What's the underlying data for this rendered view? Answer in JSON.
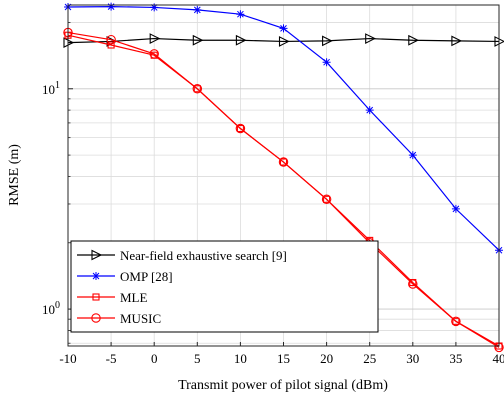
{
  "chart_data": {
    "type": "line",
    "title": "",
    "xlabel": "Transmit power of pilot signal (dBm)",
    "ylabel": "RMSE (m)",
    "xlim": [
      -10,
      40
    ],
    "ylim": [
      0.68,
      24
    ],
    "yscale": "log",
    "grid": true,
    "legend_position": "bottom-left",
    "x": [
      -10,
      -5,
      0,
      5,
      10,
      15,
      20,
      25,
      30,
      35,
      40
    ],
    "x_tick_labels": [
      "-10",
      "-5",
      "0",
      "5",
      "10",
      "15",
      "20",
      "25",
      "30",
      "35",
      "40"
    ],
    "y_ticks": [
      {
        "value": 1,
        "base": "10",
        "exp": "0"
      },
      {
        "value": 10,
        "base": "10",
        "exp": "1"
      }
    ],
    "series": [
      {
        "name": "Near-field exhaustive search [9]",
        "color": "#000000",
        "marker": "triangle-right",
        "values": [
          16.2,
          16.4,
          16.9,
          16.6,
          16.6,
          16.4,
          16.5,
          16.9,
          16.6,
          16.5,
          16.4
        ]
      },
      {
        "name": "OMP [28]",
        "color": "#0000ff",
        "marker": "star",
        "values": [
          23.5,
          23.6,
          23.4,
          22.8,
          21.8,
          18.8,
          13.2,
          8.0,
          5.0,
          2.85,
          1.85
        ]
      },
      {
        "name": "MLE",
        "color": "#ff0000",
        "marker": "square",
        "values": [
          17.5,
          15.8,
          14.2,
          10.0,
          6.6,
          4.65,
          3.15,
          2.05,
          1.32,
          0.88,
          0.68
        ]
      },
      {
        "name": "MUSIC",
        "color": "#ff0000",
        "marker": "circle",
        "values": [
          18.0,
          16.7,
          14.4,
          10.0,
          6.6,
          4.65,
          3.15,
          2.0,
          1.3,
          0.88,
          0.67
        ]
      }
    ]
  }
}
